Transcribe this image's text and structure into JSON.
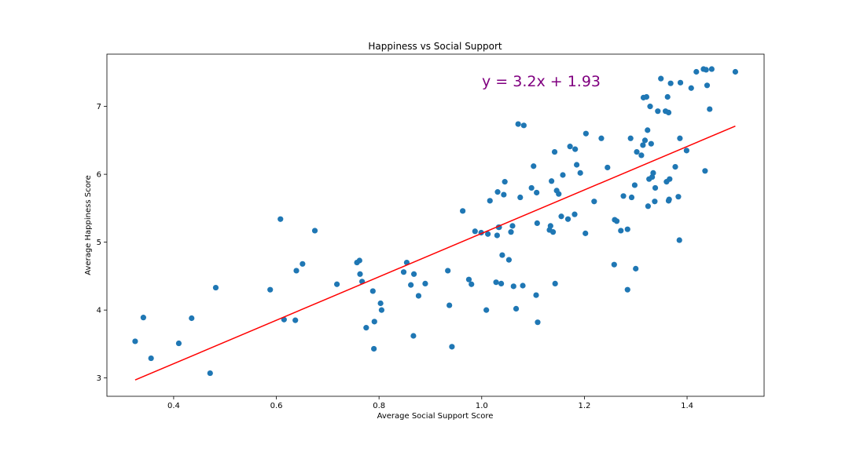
{
  "chart_data": {
    "type": "scatter",
    "title": "Happiness vs Social Support",
    "xlabel": "Average Social Support Score",
    "ylabel": "Average Happiness Score",
    "xlim": [
      0.27,
      1.55
    ],
    "ylim": [
      2.73,
      7.77
    ],
    "xticks": [
      0.4,
      0.6,
      0.8,
      1.0,
      1.2,
      1.4
    ],
    "xtick_labels": [
      "0.4",
      "0.6",
      "0.8",
      "1.0",
      "1.2",
      "1.4"
    ],
    "yticks": [
      3,
      4,
      5,
      6,
      7
    ],
    "ytick_labels": [
      "3",
      "4",
      "5",
      "6",
      "7"
    ],
    "grid": false,
    "marker_color": "#1f77b4",
    "line_color": "#ff0000",
    "annotation_color": "#800080",
    "annotation": "y = 3.2x + 1.93",
    "regression": {
      "slope": 3.2,
      "intercept": 1.93,
      "x_range": [
        0.325,
        1.494
      ]
    },
    "points": [
      [
        0.325,
        3.54
      ],
      [
        0.341,
        3.89
      ],
      [
        0.356,
        3.29
      ],
      [
        0.41,
        3.51
      ],
      [
        0.435,
        3.88
      ],
      [
        0.471,
        3.07
      ],
      [
        0.482,
        4.33
      ],
      [
        0.588,
        4.3
      ],
      [
        0.608,
        5.34
      ],
      [
        0.615,
        3.86
      ],
      [
        0.637,
        3.85
      ],
      [
        0.639,
        4.58
      ],
      [
        0.651,
        4.68
      ],
      [
        0.675,
        5.17
      ],
      [
        0.718,
        4.38
      ],
      [
        0.757,
        4.7
      ],
      [
        0.762,
        4.73
      ],
      [
        0.763,
        4.53
      ],
      [
        0.767,
        4.42
      ],
      [
        0.775,
        3.74
      ],
      [
        0.788,
        4.28
      ],
      [
        0.79,
        3.43
      ],
      [
        0.791,
        3.83
      ],
      [
        0.803,
        4.1
      ],
      [
        0.805,
        4.0
      ],
      [
        0.848,
        4.56
      ],
      [
        0.854,
        4.7
      ],
      [
        0.862,
        4.37
      ],
      [
        0.867,
        3.62
      ],
      [
        0.868,
        4.53
      ],
      [
        0.877,
        4.21
      ],
      [
        0.89,
        4.39
      ],
      [
        0.934,
        4.58
      ],
      [
        0.937,
        4.07
      ],
      [
        0.942,
        3.46
      ],
      [
        0.963,
        5.46
      ],
      [
        0.975,
        4.45
      ],
      [
        0.98,
        4.38
      ],
      [
        0.987,
        5.16
      ],
      [
        0.999,
        5.14
      ],
      [
        1.009,
        4.0
      ],
      [
        1.012,
        5.12
      ],
      [
        1.016,
        5.61
      ],
      [
        1.028,
        4.41
      ],
      [
        1.03,
        5.1
      ],
      [
        1.031,
        5.74
      ],
      [
        1.033,
        5.22
      ],
      [
        1.034,
        5.22
      ],
      [
        1.038,
        4.39
      ],
      [
        1.04,
        4.81
      ],
      [
        1.043,
        5.7
      ],
      [
        1.045,
        5.89
      ],
      [
        1.053,
        4.74
      ],
      [
        1.057,
        5.15
      ],
      [
        1.06,
        5.24
      ],
      [
        1.062,
        4.35
      ],
      [
        1.067,
        4.02
      ],
      [
        1.071,
        6.74
      ],
      [
        1.075,
        5.66
      ],
      [
        1.08,
        4.36
      ],
      [
        1.082,
        6.72
      ],
      [
        1.097,
        5.8
      ],
      [
        1.101,
        6.12
      ],
      [
        1.106,
        4.22
      ],
      [
        1.107,
        5.73
      ],
      [
        1.108,
        5.28
      ],
      [
        1.109,
        3.82
      ],
      [
        1.132,
        5.18
      ],
      [
        1.134,
        5.24
      ],
      [
        1.136,
        5.9
      ],
      [
        1.139,
        5.15
      ],
      [
        1.142,
        6.33
      ],
      [
        1.143,
        4.39
      ],
      [
        1.146,
        5.76
      ],
      [
        1.15,
        5.71
      ],
      [
        1.155,
        5.38
      ],
      [
        1.158,
        5.99
      ],
      [
        1.168,
        5.34
      ],
      [
        1.172,
        6.41
      ],
      [
        1.181,
        5.41
      ],
      [
        1.182,
        6.37
      ],
      [
        1.185,
        6.14
      ],
      [
        1.192,
        6.02
      ],
      [
        1.202,
        5.13
      ],
      [
        1.203,
        6.6
      ],
      [
        1.219,
        5.6
      ],
      [
        1.233,
        6.53
      ],
      [
        1.245,
        6.1
      ],
      [
        1.258,
        4.67
      ],
      [
        1.259,
        5.33
      ],
      [
        1.263,
        5.31
      ],
      [
        1.271,
        5.17
      ],
      [
        1.276,
        5.68
      ],
      [
        1.284,
        4.3
      ],
      [
        1.284,
        5.19
      ],
      [
        1.29,
        6.53
      ],
      [
        1.292,
        5.66
      ],
      [
        1.298,
        5.84
      ],
      [
        1.3,
        4.61
      ],
      [
        1.302,
        6.33
      ],
      [
        1.311,
        6.28
      ],
      [
        1.314,
        6.43
      ],
      [
        1.315,
        7.13
      ],
      [
        1.318,
        6.5
      ],
      [
        1.321,
        7.14
      ],
      [
        1.323,
        6.65
      ],
      [
        1.324,
        5.53
      ],
      [
        1.326,
        5.93
      ],
      [
        1.328,
        7.0
      ],
      [
        1.33,
        6.45
      ],
      [
        1.332,
        5.96
      ],
      [
        1.334,
        6.02
      ],
      [
        1.337,
        5.6
      ],
      [
        1.338,
        5.8
      ],
      [
        1.343,
        6.93
      ],
      [
        1.349,
        7.41
      ],
      [
        1.358,
        6.93
      ],
      [
        1.36,
        5.89
      ],
      [
        1.362,
        7.14
      ],
      [
        1.364,
        6.91
      ],
      [
        1.364,
        5.61
      ],
      [
        1.365,
        5.63
      ],
      [
        1.366,
        5.93
      ],
      [
        1.368,
        7.34
      ],
      [
        1.377,
        6.11
      ],
      [
        1.383,
        5.67
      ],
      [
        1.385,
        5.03
      ],
      [
        1.386,
        6.53
      ],
      [
        1.387,
        7.35
      ],
      [
        1.399,
        6.35
      ],
      [
        1.408,
        7.27
      ],
      [
        1.418,
        7.51
      ],
      [
        1.432,
        7.55
      ],
      [
        1.435,
        6.05
      ],
      [
        1.437,
        7.54
      ],
      [
        1.439,
        7.31
      ],
      [
        1.444,
        6.96
      ],
      [
        1.448,
        7.55
      ],
      [
        1.494,
        7.51
      ]
    ]
  }
}
